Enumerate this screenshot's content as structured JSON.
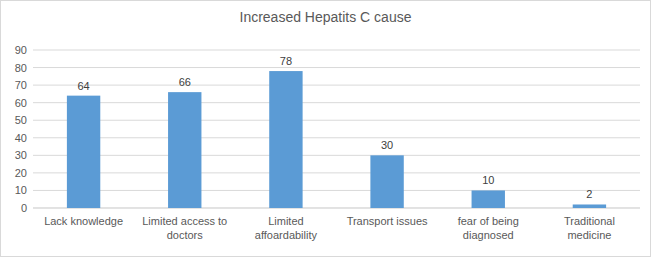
{
  "chart_data": {
    "type": "bar",
    "title": "Increased Hepatits C cause",
    "categories": [
      "Lack knowledge",
      "Limited access to doctors",
      "Limited affoardability",
      "Transport issues",
      "fear of being diagnosed",
      "Traditional medicine"
    ],
    "values": [
      64,
      66,
      78,
      30,
      10,
      2
    ],
    "color": "#5b9bd5",
    "ylim": [
      0,
      90
    ],
    "yticks": [
      0,
      10,
      20,
      30,
      40,
      50,
      60,
      70,
      80,
      90
    ],
    "grid": true,
    "data_labels": true
  }
}
